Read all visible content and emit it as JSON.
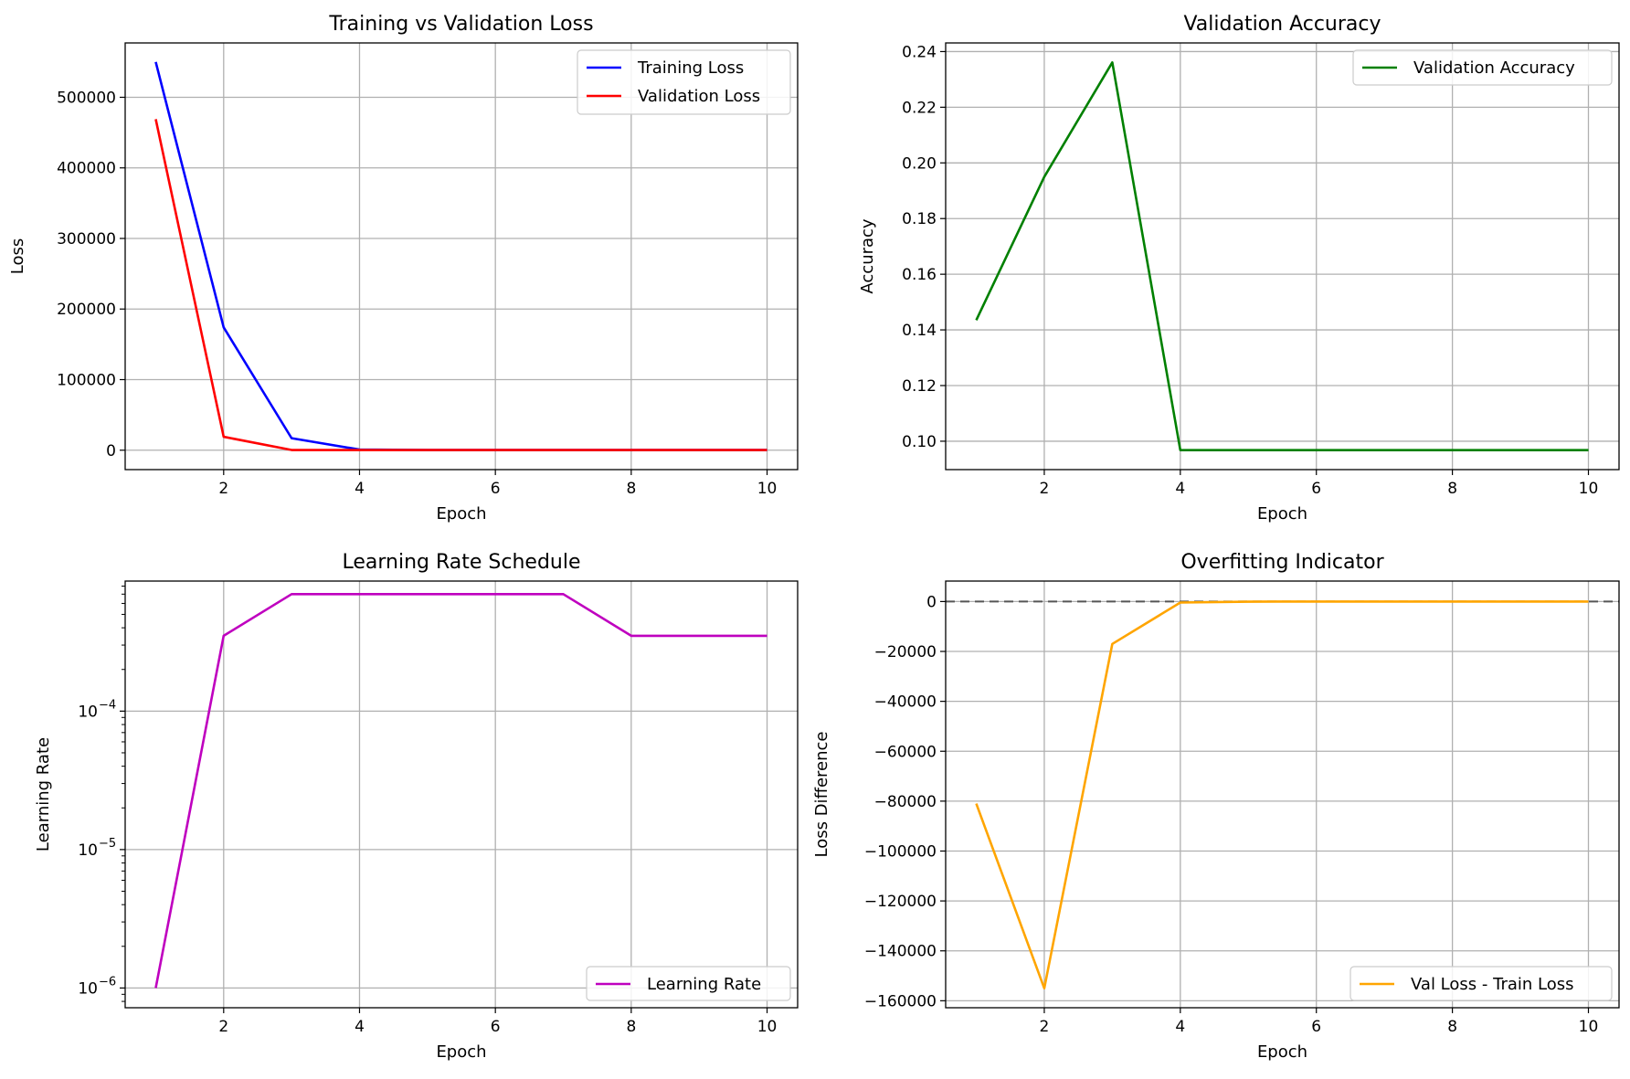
{
  "chart_data": [
    {
      "id": "loss",
      "type": "line",
      "title": "Training vs Validation Loss",
      "xlabel": "Epoch",
      "ylabel": "Loss",
      "x": [
        1,
        2,
        3,
        4,
        5,
        6,
        7,
        8,
        9,
        10
      ],
      "xlim": [
        0.55,
        10.45
      ],
      "ylim": [
        -27500,
        577000
      ],
      "yscale": "linear",
      "xticks": [
        2,
        4,
        6,
        8,
        10
      ],
      "yticks": [
        0,
        100000,
        200000,
        300000,
        400000,
        500000
      ],
      "ytick_labels": [
        "0",
        "100000",
        "200000",
        "300000",
        "400000",
        "500000"
      ],
      "grid": true,
      "legend": "upper right",
      "series": [
        {
          "name": "Training Loss",
          "color": "#0000ff",
          "values": [
            550000,
            174000,
            17000,
            900,
            200,
            200,
            200,
            200,
            200,
            200
          ]
        },
        {
          "name": "Validation Loss",
          "color": "#ff0000",
          "values": [
            469000,
            19000,
            300,
            200,
            200,
            200,
            200,
            200,
            200,
            200
          ]
        }
      ]
    },
    {
      "id": "accuracy",
      "type": "line",
      "title": "Validation Accuracy",
      "xlabel": "Epoch",
      "ylabel": "Accuracy",
      "x": [
        1,
        2,
        3,
        4,
        5,
        6,
        7,
        8,
        9,
        10
      ],
      "xlim": [
        0.55,
        10.45
      ],
      "ylim": [
        0.0898,
        0.2431
      ],
      "yscale": "linear",
      "xticks": [
        2,
        4,
        6,
        8,
        10
      ],
      "yticks": [
        0.1,
        0.12,
        0.14,
        0.16,
        0.18,
        0.2,
        0.22,
        0.24
      ],
      "ytick_labels": [
        "0.10",
        "0.12",
        "0.14",
        "0.16",
        "0.18",
        "0.20",
        "0.22",
        "0.24"
      ],
      "grid": true,
      "legend": "upper right",
      "series": [
        {
          "name": "Validation Accuracy",
          "color": "#008000",
          "values": [
            0.1435,
            0.195,
            0.2361,
            0.0968,
            0.0968,
            0.0968,
            0.0968,
            0.0968,
            0.0968,
            0.0968
          ]
        }
      ]
    },
    {
      "id": "lr",
      "type": "line",
      "title": "Learning Rate Schedule",
      "xlabel": "Epoch",
      "ylabel": "Learning Rate",
      "x": [
        1,
        2,
        3,
        4,
        5,
        6,
        7,
        8,
        9,
        10
      ],
      "xlim": [
        0.55,
        10.45
      ],
      "ylim": [
        7.2e-07,
        0.00087
      ],
      "yscale": "log",
      "xticks": [
        2,
        4,
        6,
        8,
        10
      ],
      "yticks": [
        1e-06,
        1e-05,
        0.0001
      ],
      "ytick_labels": [
        "10",
        "10",
        "10"
      ],
      "ytick_exponents": [
        "−6",
        "−5",
        "−4"
      ],
      "grid": true,
      "legend": "lower right",
      "series": [
        {
          "name": "Learning Rate",
          "color": "#bf00bf",
          "values": [
            1e-06,
            0.00035,
            0.0007,
            0.0007,
            0.0007,
            0.0007,
            0.0007,
            0.00035,
            0.00035,
            0.00035
          ]
        }
      ]
    },
    {
      "id": "overfit",
      "type": "line",
      "title": "Overfitting Indicator",
      "xlabel": "Epoch",
      "ylabel": "Loss Difference",
      "x": [
        1,
        2,
        3,
        4,
        5,
        6,
        7,
        8,
        9,
        10
      ],
      "xlim": [
        0.55,
        10.45
      ],
      "ylim": [
        -162800,
        8200
      ],
      "yscale": "linear",
      "xticks": [
        2,
        4,
        6,
        8,
        10
      ],
      "yticks": [
        0,
        -20000,
        -40000,
        -60000,
        -80000,
        -100000,
        -120000,
        -140000,
        -160000
      ],
      "ytick_labels": [
        "0",
        "−20000",
        "−40000",
        "−60000",
        "−80000",
        "−100000",
        "−120000",
        "−140000",
        "−160000"
      ],
      "grid": true,
      "legend": "lower right",
      "hline": {
        "y": 0,
        "color": "#555555",
        "style": "dashed"
      },
      "series": [
        {
          "name": "Val Loss - Train Loss",
          "color": "#ffa500",
          "values": [
            -81000,
            -155000,
            -17000,
            -400,
            -50,
            0,
            0,
            0,
            0,
            0
          ]
        }
      ]
    }
  ]
}
